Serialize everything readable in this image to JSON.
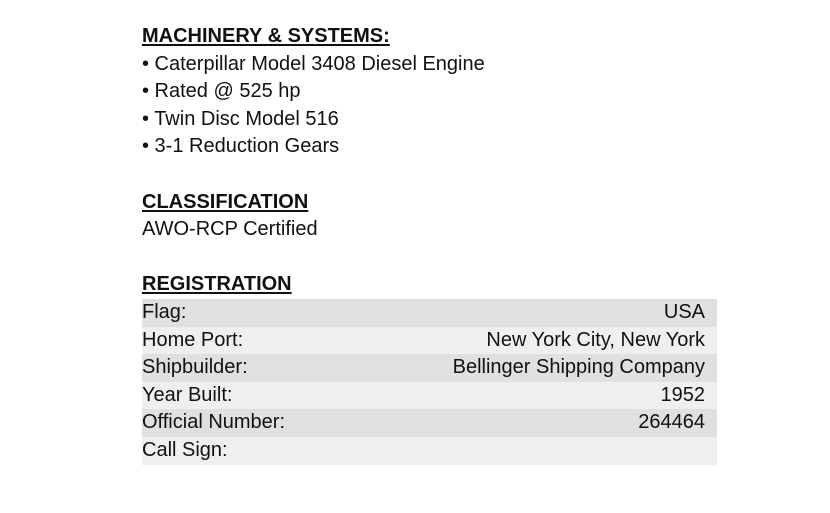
{
  "machinery": {
    "heading": "MACHINERY & SYSTEMS:",
    "items": [
      "• Caterpillar Model 3408 Diesel Engine",
      "• Rated @ 525 hp",
      "• Twin Disc Model 516",
      "• 3-1 Reduction Gears"
    ]
  },
  "classification": {
    "heading": "CLASSIFICATION",
    "value": "AWO-RCP Certified"
  },
  "registration": {
    "heading": "REGISTRATION",
    "rows": [
      {
        "label": "Flag:",
        "value": "USA"
      },
      {
        "label": "Home Port:",
        "value": "New York City, New York"
      },
      {
        "label": "Shipbuilder:",
        "value": "Bellinger Shipping Company"
      },
      {
        "label": "Year Built:",
        "value": "1952"
      },
      {
        "label": "Official Number:",
        "value": "264464"
      },
      {
        "label": "Call Sign:",
        "value": ""
      }
    ]
  },
  "colors": {
    "row_dark": "#e0e0e0",
    "row_light": "#efefef"
  }
}
